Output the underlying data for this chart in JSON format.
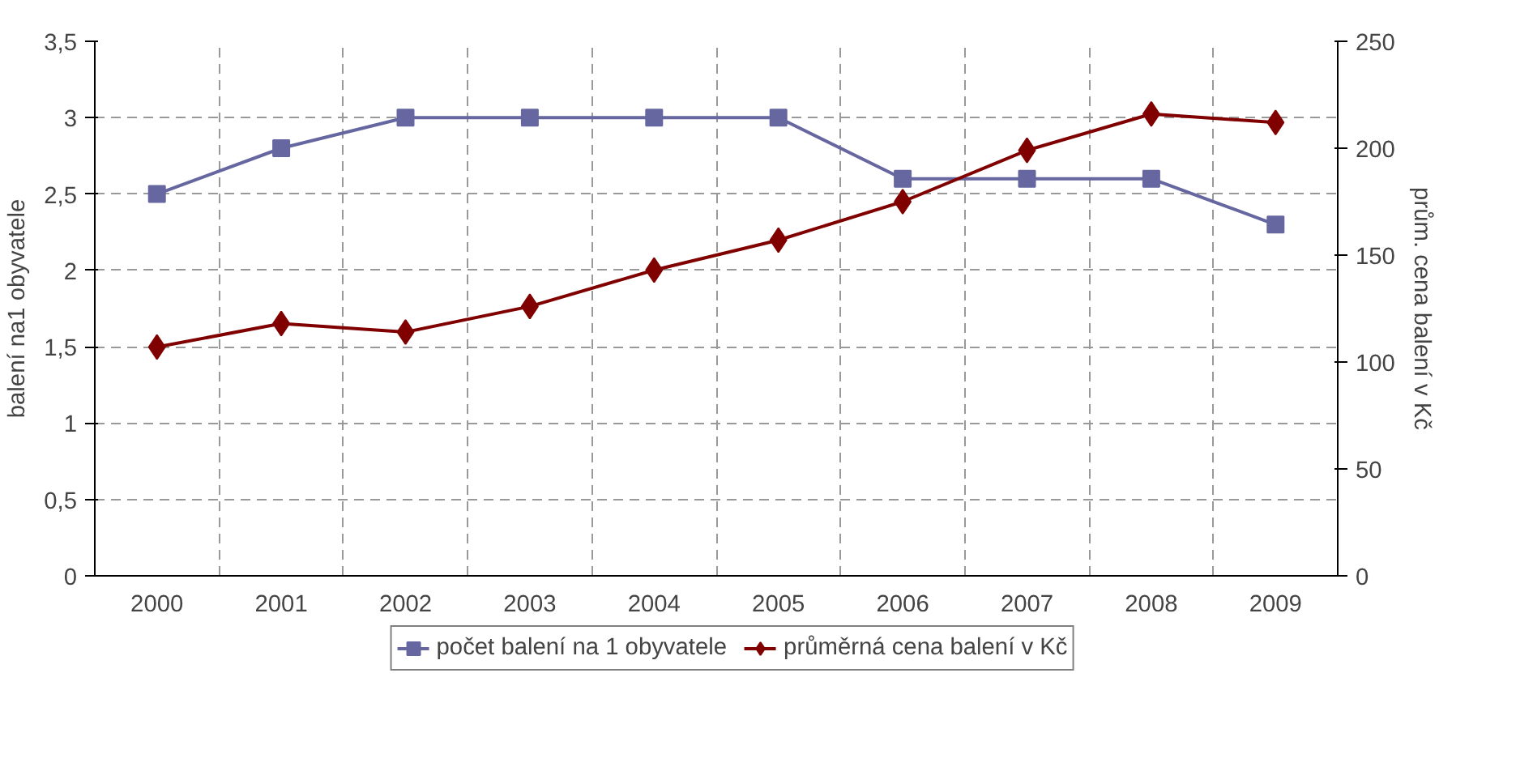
{
  "chart_data": {
    "type": "line",
    "xlabel": null,
    "ylabel": "balení na1 obyvatele",
    "y2label": "prům. cena balení v Kč",
    "categories": [
      "2000",
      "2001",
      "2002",
      "2003",
      "2004",
      "2005",
      "2006",
      "2007",
      "2008",
      "2009"
    ],
    "series": [
      {
        "name": "počet balení na 1 obyvatele",
        "color": "#6666a0",
        "marker": "square",
        "values": [
          2.5,
          2.8,
          3,
          3,
          3,
          3,
          2.6,
          2.6,
          2.6,
          2.3
        ]
      },
      {
        "name": "průměrná cena balení v Kč",
        "color": "#800000",
        "marker": "diamond",
        "axis": "y2",
        "values": [
          107,
          118,
          114,
          126,
          143,
          157,
          175,
          199,
          216,
          212
        ]
      }
    ],
    "ylim": [
      0,
      3.5
    ],
    "yticks": [
      {
        "value": 0,
        "label": "0"
      },
      {
        "value": 0.5,
        "label": "0,5"
      },
      {
        "value": 1,
        "label": "1"
      },
      {
        "value": 1.5,
        "label": "1,5"
      },
      {
        "value": 2,
        "label": "2"
      },
      {
        "value": 2.5,
        "label": "2,5"
      },
      {
        "value": 3,
        "label": "3"
      },
      {
        "value": 3.5,
        "label": "3,5"
      }
    ],
    "y2lim": [
      0,
      250
    ],
    "y2ticks": [
      0,
      50,
      100,
      150,
      200,
      250
    ],
    "grid": true,
    "legend": "bottom",
    "line_style": "solid"
  }
}
